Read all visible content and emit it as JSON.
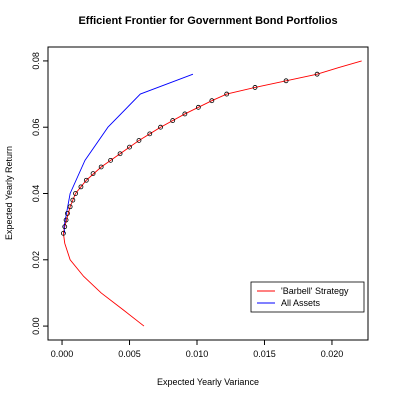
{
  "chart_data": {
    "type": "line",
    "title": "Efficient Frontier for Government Bond Portfolios",
    "x_label": "Expected Yearly Variance",
    "y_label": "Expected Yearly Return",
    "xlim": [
      -0.00104,
      0.02267
    ],
    "ylim": [
      -0.0042,
      0.0842
    ],
    "xticks": [
      {
        "value": 0,
        "label": "0.000"
      },
      0.005,
      {
        "value": 0.01,
        "label": "0.010"
      },
      0.015,
      {
        "value": 0.02,
        "label": "0.020"
      }
    ],
    "yticks": [
      {
        "value": 0,
        "label": "0.00"
      },
      0.02,
      0.04,
      0.06,
      0.08
    ],
    "legend_position": "bottom-right",
    "series": [
      {
        "name": "'Barbell' Strategy",
        "color": "#ff0000",
        "x": [
          0.00607,
          0.0045,
          0.0029,
          0.0016,
          0.0006,
          0.0002,
          0.0001,
          0.0002,
          0.0006,
          0.001,
          0.0018,
          0.0029,
          0.0043,
          0.0057,
          0.0073,
          0.0091,
          0.0111,
          0.0122,
          0.0143,
          0.0166,
          0.0189,
          0.0205,
          0.0222
        ],
        "y": [
          0,
          0.005,
          0.01,
          0.015,
          0.02,
          0.025,
          0.028,
          0.03,
          0.036,
          0.04,
          0.044,
          0.048,
          0.052,
          0.056,
          0.06,
          0.064,
          0.068,
          0.07,
          0.072,
          0.074,
          0.076,
          0.078,
          0.08
        ]
      },
      {
        "name": "All Assets",
        "color": "#0000ff",
        "x": [
          0.0002,
          0.00015,
          0.0006,
          0.0017,
          0.0034,
          0.0058,
          0.0097
        ],
        "y": [
          0.028,
          0.03,
          0.04,
          0.05,
          0.06,
          0.07,
          0.076
        ]
      }
    ],
    "points": {
      "color": "#000000",
      "x": [
        0.0001,
        0.0002,
        0.0003,
        0.0004,
        0.0006,
        0.0008,
        0.001,
        0.0014,
        0.0018,
        0.0023,
        0.0029,
        0.0036,
        0.0043,
        0.005,
        0.0057,
        0.0065,
        0.0073,
        0.0082,
        0.0091,
        0.0101,
        0.0111,
        0.0122,
        0.0143,
        0.0166,
        0.0189
      ],
      "y": [
        0.028,
        0.03,
        0.032,
        0.034,
        0.036,
        0.038,
        0.04,
        0.042,
        0.044,
        0.046,
        0.048,
        0.05,
        0.052,
        0.054,
        0.056,
        0.058,
        0.06,
        0.062,
        0.064,
        0.066,
        0.068,
        0.07,
        0.072,
        0.074,
        0.076
      ]
    }
  }
}
